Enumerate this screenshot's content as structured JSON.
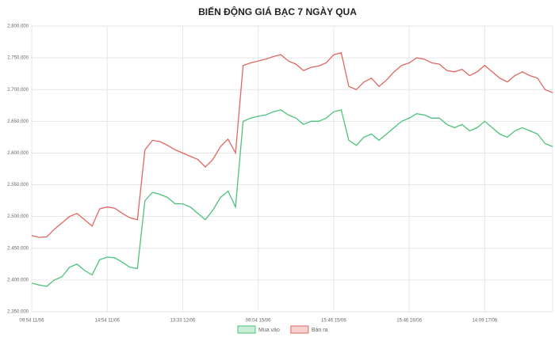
{
  "chart_data": {
    "type": "line",
    "title": "BIẾN ĐỘNG GIÁ BẠC 7 NGÀY QUA",
    "categories": [
      "09:54 11/06",
      null,
      null,
      null,
      null,
      null,
      null,
      null,
      null,
      null,
      "14:54 11/06",
      null,
      null,
      null,
      null,
      null,
      null,
      null,
      null,
      null,
      "13:33 12/06",
      null,
      null,
      null,
      null,
      null,
      null,
      null,
      null,
      null,
      "09:04 15/06",
      null,
      null,
      null,
      null,
      null,
      null,
      null,
      null,
      null,
      "15:46 15/06",
      null,
      null,
      null,
      null,
      null,
      null,
      null,
      null,
      null,
      "15:46 16/06",
      null,
      null,
      null,
      null,
      null,
      null,
      null,
      null,
      null,
      "14:09 17/06",
      null,
      null,
      null,
      null,
      null,
      null,
      null,
      null,
      null
    ],
    "series": [
      {
        "name": "Mua vào",
        "color": "#4cc27a",
        "values": [
          2395000,
          2392000,
          2390000,
          2400000,
          2405000,
          2420000,
          2425000,
          2415000,
          2408000,
          2432000,
          2436000,
          2435000,
          2428000,
          2420000,
          2418000,
          2525000,
          2538000,
          2535000,
          2530000,
          2520000,
          2520000,
          2515000,
          2505000,
          2495000,
          2510000,
          2530000,
          2540000,
          2515000,
          2650000,
          2655000,
          2658000,
          2660000,
          2665000,
          2668000,
          2660000,
          2655000,
          2645000,
          2650000,
          2650000,
          2655000,
          2665000,
          2668000,
          2620000,
          2612000,
          2625000,
          2630000,
          2620000,
          2630000,
          2640000,
          2650000,
          2655000,
          2662000,
          2660000,
          2655000,
          2655000,
          2645000,
          2640000,
          2645000,
          2635000,
          2640000,
          2650000,
          2640000,
          2630000,
          2625000,
          2635000,
          2640000,
          2635000,
          2630000,
          2615000,
          2610000
        ]
      },
      {
        "name": "Bán ra",
        "color": "#e0675f",
        "values": [
          2470000,
          2467000,
          2468000,
          2480000,
          2490000,
          2500000,
          2505000,
          2495000,
          2485000,
          2512000,
          2515000,
          2513000,
          2505000,
          2498000,
          2495000,
          2605000,
          2620000,
          2618000,
          2612000,
          2605000,
          2600000,
          2595000,
          2590000,
          2578000,
          2590000,
          2610000,
          2622000,
          2600000,
          2738000,
          2742000,
          2745000,
          2748000,
          2752000,
          2755000,
          2745000,
          2740000,
          2730000,
          2735000,
          2737000,
          2742000,
          2755000,
          2758000,
          2705000,
          2700000,
          2712000,
          2718000,
          2705000,
          2715000,
          2728000,
          2738000,
          2742000,
          2750000,
          2748000,
          2742000,
          2740000,
          2730000,
          2728000,
          2732000,
          2722000,
          2728000,
          2738000,
          2728000,
          2718000,
          2712000,
          2722000,
          2728000,
          2722000,
          2718000,
          2700000,
          2695000
        ]
      }
    ],
    "ylim": [
      2350000,
      2800000
    ],
    "yticks": [
      {
        "value": 2350000,
        "label": "2.350.000"
      },
      {
        "value": 2400000,
        "label": "2.400.000"
      },
      {
        "value": 2450000,
        "label": "2.450.000"
      },
      {
        "value": 2500000,
        "label": "2.500.000"
      },
      {
        "value": 2550000,
        "label": "2.550.000"
      },
      {
        "value": 2600000,
        "label": "2.600.000"
      },
      {
        "value": 2650000,
        "label": "2.650.000"
      },
      {
        "value": 2700000,
        "label": "2.700.000"
      },
      {
        "value": 2750000,
        "label": "2.750.000"
      },
      {
        "value": 2800000,
        "label": "2.800.000"
      }
    ],
    "grid": true
  }
}
